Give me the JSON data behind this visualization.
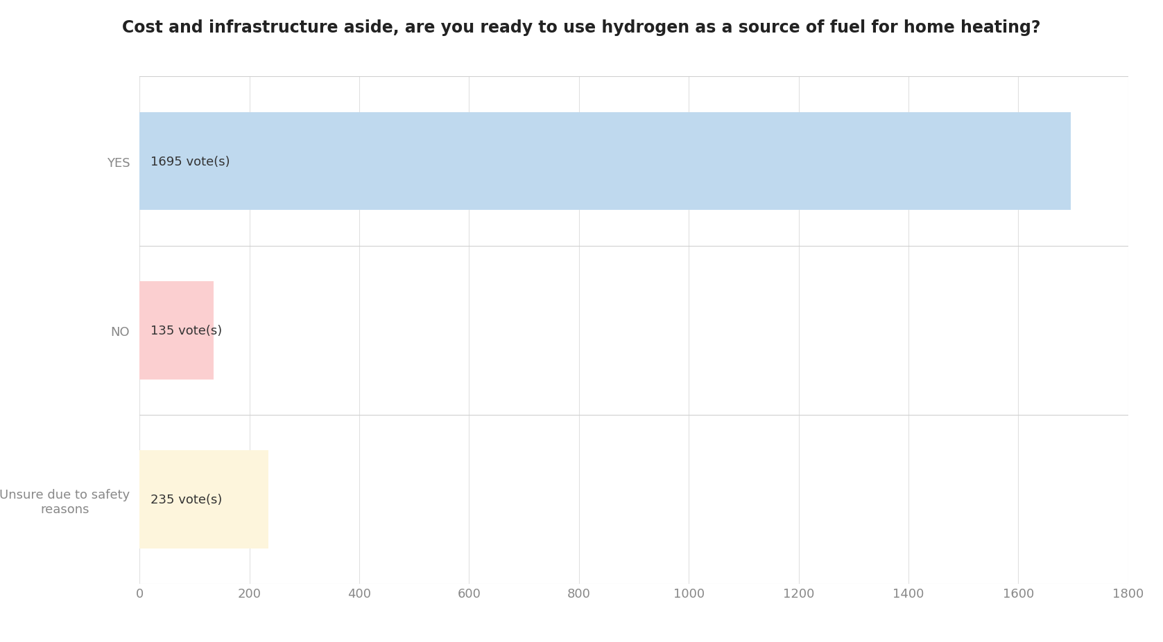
{
  "title": "Cost and infrastructure aside, are you ready to use hydrogen as a source of fuel for home heating?",
  "categories": [
    "YES",
    "NO",
    "Unsure due to safety\nreasons"
  ],
  "values": [
    1695,
    135,
    235
  ],
  "labels": [
    "1695 vote(s)",
    "135 vote(s)",
    "235 vote(s)"
  ],
  "bar_colors": [
    "#BFD9EE",
    "#FBCFD0",
    "#FDF5DC"
  ],
  "xlim": [
    0,
    1800
  ],
  "xticks": [
    0,
    200,
    400,
    600,
    800,
    1000,
    1200,
    1400,
    1600,
    1800
  ],
  "background_color": "#ffffff",
  "plot_bg_color": "#ffffff",
  "grid_color": "#e0e0e0",
  "separator_color": "#d0d0d0",
  "title_fontsize": 17,
  "label_fontsize": 13,
  "tick_fontsize": 13,
  "ytick_fontsize": 13,
  "bar_height": 0.58
}
